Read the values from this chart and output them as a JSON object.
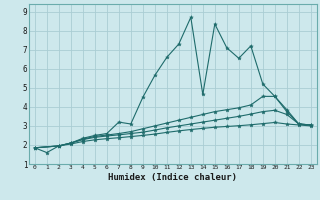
{
  "xlabel": "Humidex (Indice chaleur)",
  "background_color": "#cde8ec",
  "grid_color": "#aacdd4",
  "line_color": "#1e6b6b",
  "spine_color": "#6aacac",
  "xlim": [
    -0.5,
    23.5
  ],
  "ylim": [
    1,
    9.4
  ],
  "xticks": [
    0,
    1,
    2,
    3,
    4,
    5,
    6,
    7,
    8,
    9,
    10,
    11,
    12,
    13,
    14,
    15,
    16,
    17,
    18,
    19,
    20,
    21,
    22,
    23
  ],
  "yticks": [
    1,
    2,
    3,
    4,
    5,
    6,
    7,
    8,
    9
  ],
  "series": [
    {
      "x": [
        0,
        1,
        2,
        3,
        4,
        5,
        6,
        7,
        8,
        9,
        10,
        11,
        12,
        13,
        14,
        15,
        16,
        17,
        18,
        19,
        20,
        21,
        22,
        23
      ],
      "y": [
        1.85,
        1.6,
        1.95,
        2.1,
        2.35,
        2.5,
        2.6,
        3.2,
        3.1,
        4.5,
        5.65,
        6.6,
        7.3,
        8.7,
        4.65,
        8.35,
        7.1,
        6.55,
        7.2,
        5.2,
        4.55,
        3.75,
        3.1,
        3.05
      ]
    },
    {
      "x": [
        0,
        2,
        3,
        4,
        5,
        6,
        7,
        8,
        9,
        10,
        11,
        12,
        13,
        14,
        15,
        16,
        17,
        18,
        19,
        20,
        21,
        22,
        23
      ],
      "y": [
        1.85,
        1.95,
        2.1,
        2.3,
        2.45,
        2.52,
        2.6,
        2.7,
        2.85,
        3.0,
        3.15,
        3.3,
        3.45,
        3.6,
        3.75,
        3.85,
        3.95,
        4.1,
        4.55,
        4.55,
        3.85,
        3.1,
        3.05
      ]
    },
    {
      "x": [
        0,
        2,
        3,
        4,
        5,
        6,
        7,
        8,
        9,
        10,
        11,
        12,
        13,
        14,
        15,
        16,
        17,
        18,
        19,
        20,
        21,
        22,
        23
      ],
      "y": [
        1.85,
        1.95,
        2.1,
        2.28,
        2.4,
        2.47,
        2.53,
        2.6,
        2.67,
        2.78,
        2.9,
        3.0,
        3.1,
        3.2,
        3.3,
        3.4,
        3.5,
        3.62,
        3.75,
        3.82,
        3.6,
        3.1,
        3.05
      ]
    },
    {
      "x": [
        0,
        2,
        3,
        4,
        5,
        6,
        7,
        8,
        9,
        10,
        11,
        12,
        13,
        14,
        15,
        16,
        17,
        18,
        19,
        20,
        21,
        22,
        23
      ],
      "y": [
        1.85,
        1.95,
        2.05,
        2.18,
        2.27,
        2.33,
        2.38,
        2.44,
        2.5,
        2.57,
        2.66,
        2.74,
        2.81,
        2.87,
        2.93,
        2.97,
        3.01,
        3.06,
        3.12,
        3.18,
        3.1,
        3.05,
        3.0
      ]
    }
  ]
}
